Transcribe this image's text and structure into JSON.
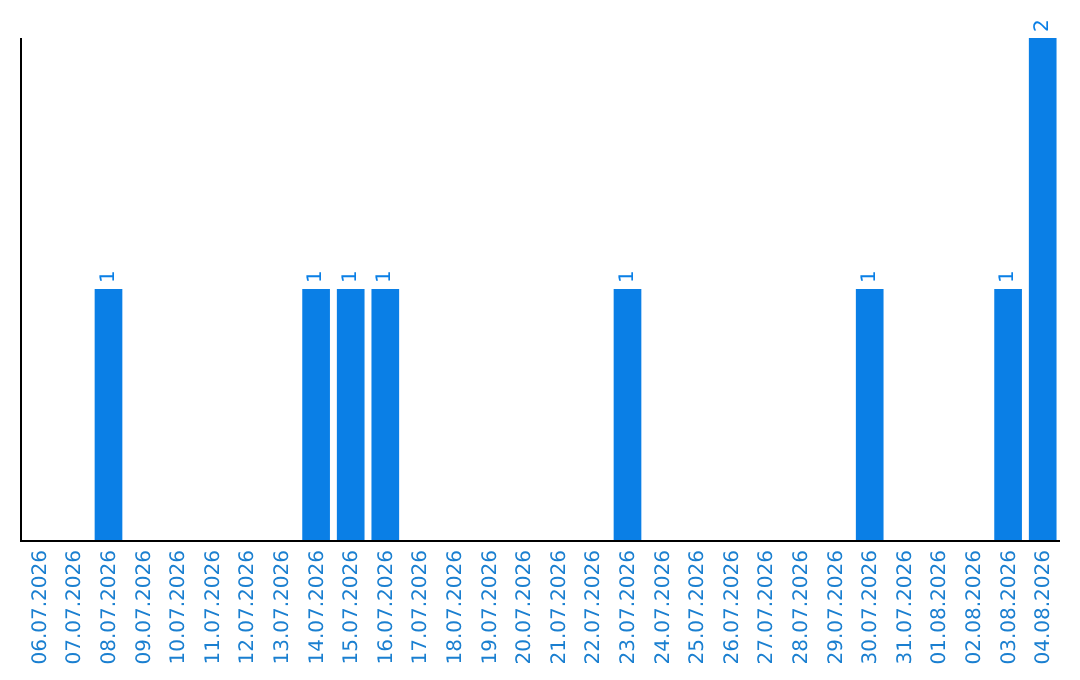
{
  "chart_data": {
    "type": "bar",
    "categories": [
      "06.07.2026",
      "07.07.2026",
      "08.07.2026",
      "09.07.2026",
      "10.07.2026",
      "11.07.2026",
      "12.07.2026",
      "13.07.2026",
      "14.07.2026",
      "15.07.2026",
      "16.07.2026",
      "17.07.2026",
      "18.07.2026",
      "19.07.2026",
      "20.07.2026",
      "21.07.2026",
      "22.07.2026",
      "23.07.2026",
      "24.07.2026",
      "25.07.2026",
      "26.07.2026",
      "27.07.2026",
      "28.07.2026",
      "29.07.2026",
      "30.07.2026",
      "31.07.2026",
      "01.08.2026",
      "02.08.2026",
      "03.08.2026",
      "04.08.2026"
    ],
    "values": [
      0,
      0,
      1,
      0,
      0,
      0,
      0,
      0,
      1,
      1,
      1,
      0,
      0,
      0,
      0,
      0,
      0,
      1,
      0,
      0,
      0,
      0,
      0,
      0,
      1,
      0,
      0,
      0,
      1,
      2
    ],
    "value_labels": [
      null,
      null,
      "1",
      null,
      null,
      null,
      null,
      null,
      "1",
      "1",
      "1",
      null,
      null,
      null,
      null,
      null,
      null,
      "1",
      null,
      null,
      null,
      null,
      null,
      null,
      "1",
      null,
      null,
      null,
      "1",
      "2"
    ],
    "color": "#0a7fe6",
    "grid": false,
    "legend": false,
    "tick_labels": "x"
  }
}
